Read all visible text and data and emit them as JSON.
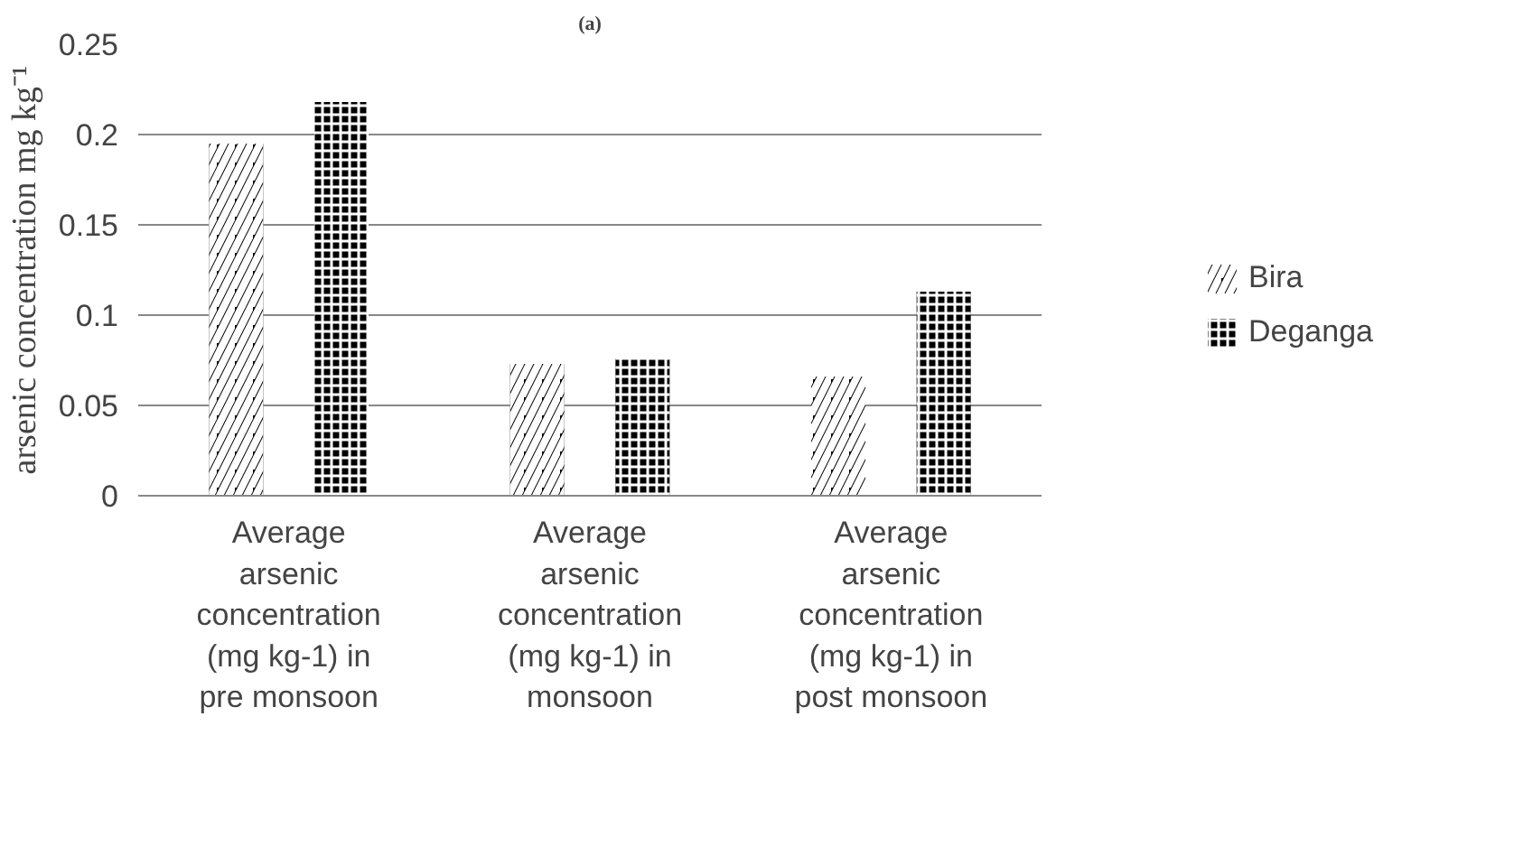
{
  "chart_data": {
    "type": "bar",
    "title": "(a)",
    "ylabel": "arsenic concentration mg kg⁻¹",
    "categories": [
      "Average arsenic concentration (mg kg-1) in pre monsoon",
      "Average arsenic concentration (mg kg-1) in monsoon",
      "Average arsenic concentration (mg kg-1) in post monsoon"
    ],
    "series": [
      {
        "name": "Bira",
        "color": "#000000",
        "values": [
          0.195,
          0.073,
          0.066
        ]
      },
      {
        "name": "Deganga",
        "color": "#000000",
        "values": [
          0.218,
          0.076,
          0.113
        ]
      }
    ],
    "ylim": [
      0,
      0.25
    ],
    "yticks": [
      0,
      0.05,
      0.1,
      0.15,
      0.2,
      0.25
    ],
    "grid": "y",
    "legend": "right"
  }
}
